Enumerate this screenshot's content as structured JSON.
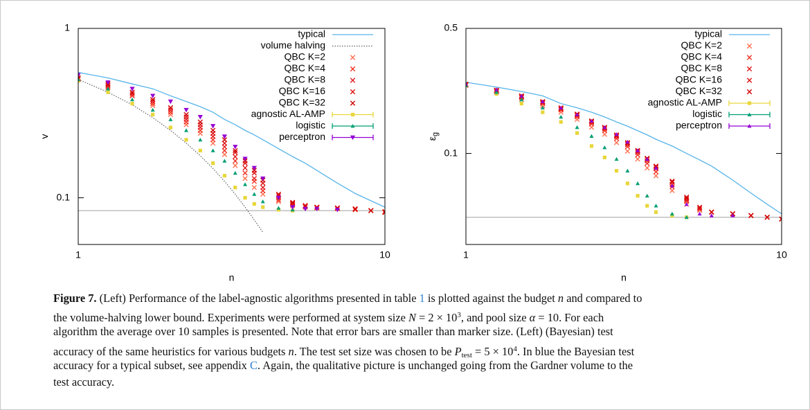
{
  "chart_data": [
    {
      "type": "scatter",
      "xlabel": "n",
      "ylabel": "v",
      "xlog": true,
      "ylog": true,
      "xlim": [
        1,
        10
      ],
      "ylim": [
        0.053,
        1
      ],
      "xticks": [
        1,
        10
      ],
      "yticks": [
        0.1,
        1
      ],
      "hline": 0.084,
      "hline_color": "#a0a0a0",
      "x": [
        1,
        1.25,
        1.5,
        1.75,
        2,
        2.25,
        2.5,
        2.75,
        3,
        3.25,
        3.5,
        3.75,
        4,
        4.5,
        5,
        5.5,
        6,
        7,
        8,
        9,
        10
      ],
      "series": [
        {
          "name": "typical",
          "color": "#56b4e9",
          "marker": "line",
          "values": [
            0.55,
            0.51,
            0.47,
            0.44,
            0.4,
            0.37,
            0.345,
            0.32,
            0.29,
            0.27,
            0.25,
            0.235,
            0.22,
            0.195,
            0.175,
            0.16,
            0.145,
            0.122,
            0.106,
            0.096,
            0.088
          ]
        },
        {
          "name": "volume halving",
          "color": "#606060",
          "marker": "dotted",
          "values": [
            0.5,
            0.42,
            0.354,
            0.297,
            0.25,
            0.21,
            0.177,
            0.149,
            0.125,
            0.105,
            0.088,
            0.074,
            0.0625,
            null,
            null,
            null,
            null,
            null,
            null,
            null,
            null
          ]
        },
        {
          "name": "QBC K=2",
          "color": "#ff7050",
          "marker": "x",
          "values": [
            0.5,
            0.45,
            0.4,
            0.35,
            0.31,
            0.27,
            0.24,
            0.21,
            0.18,
            0.155,
            0.13,
            0.115,
            0.105,
            0.095,
            0.09,
            0.088,
            0.087,
            0.086,
            0.085,
            0.084,
            0.083
          ]
        },
        {
          "name": "QBC K=4",
          "color": "#f03020",
          "marker": "x",
          "values": [
            0.5,
            0.45,
            0.4,
            0.36,
            0.32,
            0.28,
            0.25,
            0.22,
            0.19,
            0.165,
            0.14,
            0.125,
            0.11,
            0.097,
            0.091,
            0.089,
            0.088,
            0.087,
            0.085,
            0.084,
            0.083
          ]
        },
        {
          "name": "QBC K=8",
          "color": "#e41a1c",
          "marker": "x",
          "values": [
            0.51,
            0.46,
            0.41,
            0.37,
            0.33,
            0.29,
            0.26,
            0.23,
            0.2,
            0.175,
            0.15,
            0.13,
            0.115,
            0.1,
            0.092,
            0.089,
            0.088,
            0.087,
            0.086,
            0.084,
            0.082
          ]
        },
        {
          "name": "QBC K=16",
          "color": "#dc1010",
          "marker": "x",
          "values": [
            0.51,
            0.46,
            0.42,
            0.38,
            0.34,
            0.3,
            0.27,
            0.24,
            0.21,
            0.185,
            0.16,
            0.14,
            0.122,
            0.103,
            0.093,
            0.09,
            0.088,
            0.087,
            0.086,
            0.084,
            0.082
          ]
        },
        {
          "name": "QBC K=32",
          "color": "#d00000",
          "marker": "x",
          "values": [
            0.51,
            0.47,
            0.42,
            0.38,
            0.34,
            0.31,
            0.28,
            0.25,
            0.22,
            0.19,
            0.165,
            0.145,
            0.127,
            0.105,
            0.094,
            0.09,
            0.088,
            0.087,
            0.086,
            0.084,
            0.082
          ]
        },
        {
          "name": "agnostic AL-AMP",
          "color": "#e8d63a",
          "marker": "square",
          "values": [
            0.49,
            0.42,
            0.36,
            0.31,
            0.26,
            0.22,
            0.19,
            0.16,
            0.135,
            0.115,
            0.1,
            0.092,
            0.088,
            0.085,
            0.084,
            null,
            null,
            null,
            null,
            null,
            null
          ]
        },
        {
          "name": "logistic",
          "color": "#009e73",
          "marker": "triangle",
          "values": [
            0.5,
            0.44,
            0.38,
            0.33,
            0.29,
            0.25,
            0.22,
            0.19,
            0.165,
            0.14,
            0.12,
            0.105,
            0.095,
            0.087,
            0.085,
            null,
            null,
            null,
            null,
            null,
            null
          ]
        },
        {
          "name": "perceptron",
          "color": "#9400d3",
          "marker": "triangle-down",
          "values": [
            0.53,
            0.48,
            0.44,
            0.4,
            0.37,
            0.33,
            0.3,
            0.265,
            0.23,
            0.2,
            0.17,
            0.15,
            0.13,
            0.1,
            0.088,
            0.086,
            0.086,
            0.085,
            null,
            null,
            null
          ]
        }
      ]
    },
    {
      "type": "scatter",
      "xlabel": "n",
      "ylabel": "ε",
      "ylabel_subscript": "g",
      "xlog": true,
      "ylog": true,
      "xlim": [
        1,
        10
      ],
      "ylim": [
        0.031,
        0.5
      ],
      "xticks": [
        1,
        10
      ],
      "yticks": [
        0.1,
        0.5
      ],
      "hline": 0.044,
      "hline_color": "#a0a0a0",
      "x": [
        1,
        1.25,
        1.5,
        1.75,
        2,
        2.25,
        2.5,
        2.75,
        3,
        3.25,
        3.5,
        3.75,
        4,
        4.5,
        5,
        5.5,
        6,
        7,
        8,
        9,
        10
      ],
      "series": [
        {
          "name": "typical",
          "color": "#56b4e9",
          "marker": "line",
          "values": [
            0.25,
            0.235,
            0.222,
            0.21,
            0.19,
            0.18,
            0.17,
            0.16,
            0.15,
            0.142,
            0.134,
            0.127,
            0.12,
            0.11,
            0.1,
            0.092,
            0.085,
            0.071,
            0.06,
            0.052,
            0.046
          ]
        },
        {
          "name": "QBC K=2",
          "color": "#ff7050",
          "marker": "x",
          "values": [
            0.24,
            0.22,
            0.2,
            0.185,
            0.17,
            0.155,
            0.14,
            0.128,
            0.115,
            0.103,
            0.093,
            0.083,
            0.075,
            0.062,
            0.052,
            0.048,
            0.047,
            0.046,
            0.045,
            0.044,
            0.043
          ]
        },
        {
          "name": "QBC K=4",
          "color": "#f03020",
          "marker": "x",
          "values": [
            0.24,
            0.222,
            0.205,
            0.19,
            0.175,
            0.16,
            0.146,
            0.134,
            0.121,
            0.109,
            0.098,
            0.088,
            0.079,
            0.065,
            0.054,
            0.049,
            0.047,
            0.046,
            0.045,
            0.044,
            0.043
          ]
        },
        {
          "name": "QBC K=8",
          "color": "#e41a1c",
          "marker": "x",
          "values": [
            0.242,
            0.224,
            0.207,
            0.192,
            0.177,
            0.163,
            0.149,
            0.137,
            0.124,
            0.112,
            0.101,
            0.091,
            0.082,
            0.067,
            0.055,
            0.049,
            0.047,
            0.046,
            0.045,
            0.044,
            0.043
          ]
        },
        {
          "name": "QBC K=16",
          "color": "#dc1010",
          "marker": "x",
          "values": [
            0.243,
            0.225,
            0.209,
            0.194,
            0.179,
            0.165,
            0.151,
            0.139,
            0.126,
            0.114,
            0.103,
            0.093,
            0.084,
            0.069,
            0.056,
            0.05,
            0.047,
            0.046,
            0.045,
            0.044,
            0.043
          ]
        },
        {
          "name": "QBC K=32",
          "color": "#d00000",
          "marker": "x",
          "values": [
            0.244,
            0.226,
            0.21,
            0.195,
            0.18,
            0.166,
            0.152,
            0.14,
            0.127,
            0.115,
            0.104,
            0.094,
            0.085,
            0.07,
            0.057,
            0.05,
            0.047,
            0.046,
            0.045,
            0.044,
            0.043
          ]
        },
        {
          "name": "agnostic AL-AMP",
          "color": "#e8d63a",
          "marker": "square",
          "values": [
            0.24,
            0.215,
            0.19,
            0.17,
            0.15,
            0.13,
            0.11,
            0.095,
            0.08,
            0.068,
            0.058,
            0.051,
            0.047,
            0.045,
            0.044,
            null,
            null,
            null,
            null,
            null,
            null
          ]
        },
        {
          "name": "logistic",
          "color": "#009e73",
          "marker": "triangle",
          "values": [
            0.24,
            0.22,
            0.2,
            0.18,
            0.16,
            0.14,
            0.125,
            0.108,
            0.093,
            0.08,
            0.068,
            0.058,
            0.051,
            0.046,
            0.044,
            null,
            null,
            null,
            null,
            null,
            null
          ]
        },
        {
          "name": "perceptron",
          "color": "#9400d3",
          "marker": "triangle",
          "values": [
            0.245,
            0.228,
            0.21,
            0.195,
            0.18,
            0.165,
            0.152,
            0.14,
            0.128,
            0.116,
            0.104,
            0.093,
            0.083,
            0.066,
            0.052,
            0.046,
            0.045,
            0.045,
            null,
            null,
            null
          ]
        }
      ]
    }
  ],
  "caption": {
    "lines": [
      [
        {
          "t": "Figure 7.",
          "s": "b"
        },
        {
          "t": " (Left) Performance of the label-agnostic algorithms presented in table "
        },
        {
          "t": "1",
          "s": "link"
        },
        {
          "t": " is plotted against the budget "
        },
        {
          "t": "n",
          "s": "i"
        },
        {
          "t": " and compared to"
        }
      ],
      [
        {
          "t": "the volume-halving lower bound. Experiments were performed at system size "
        },
        {
          "t": "N",
          "s": "i"
        },
        {
          "t": " = 2 × 10"
        },
        {
          "t": "3",
          "s": "sup"
        },
        {
          "t": ", and pool size "
        },
        {
          "t": "α",
          "s": "i"
        },
        {
          "t": " = 10. For each"
        }
      ],
      [
        {
          "t": "algorithm the average over 10 samples is presented. Note that error bars are smaller than marker size. (Left) (Bayesian) test"
        }
      ],
      [
        {
          "t": "accuracy of the same heuristics for various budgets "
        },
        {
          "t": "n",
          "s": "i"
        },
        {
          "t": ". The test set size was chosen to be "
        },
        {
          "t": "P",
          "s": "i"
        },
        {
          "t": "test",
          "s": "sub"
        },
        {
          "t": " = 5 × 10"
        },
        {
          "t": "4",
          "s": "sup"
        },
        {
          "t": ". In blue the Bayesian test"
        }
      ],
      [
        {
          "t": "accuracy for a typical subset, see appendix "
        },
        {
          "t": "C",
          "s": "link"
        },
        {
          "t": ". Again, the qualitative picture is unchanged going from the Gardner volume to the"
        }
      ],
      [
        {
          "t": "test accuracy."
        }
      ]
    ]
  }
}
